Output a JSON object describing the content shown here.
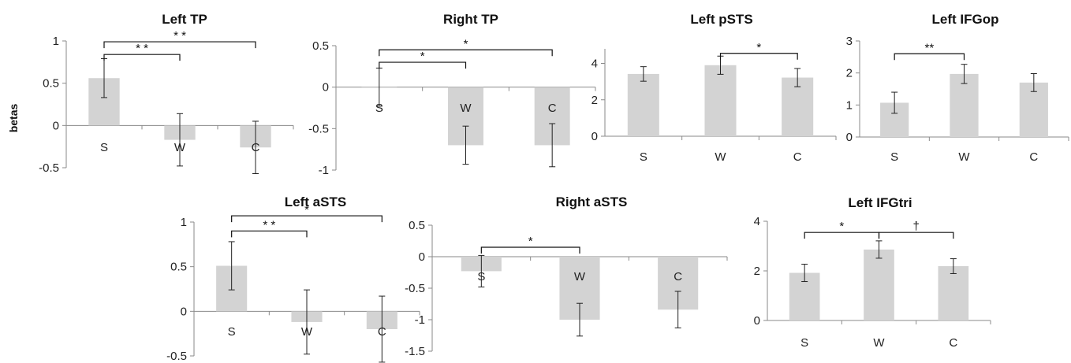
{
  "figure": {
    "ylabel": "betas",
    "bar_color": "#d3d3d3"
  },
  "chart_data": [
    {
      "type": "bar",
      "title": "Left TP",
      "categories": [
        "S",
        "W",
        "C"
      ],
      "values": [
        0.56,
        -0.17,
        -0.26
      ],
      "errors": [
        0.23,
        0.31,
        0.31
      ],
      "ylim": [
        -0.5,
        1
      ],
      "yticks": [
        1,
        0.5,
        0,
        -0.5
      ],
      "ytick_labels": [
        "1",
        "0.5",
        "0",
        "-0.5"
      ],
      "ylabel": "betas",
      "significance": [
        {
          "from": "S",
          "to": "W",
          "label": "* *",
          "y": 0.84
        },
        {
          "from": "S",
          "to": "C",
          "label": "* *",
          "y": 0.99
        }
      ]
    },
    {
      "type": "bar",
      "title": "Right TP",
      "categories": [
        "S",
        "W",
        "C"
      ],
      "values": [
        0.0,
        -0.7,
        -0.7
      ],
      "errors": [
        0.23,
        0.23,
        0.26
      ],
      "ylim": [
        -1,
        0.5
      ],
      "yticks": [
        0.5,
        0,
        -0.5,
        -1
      ],
      "ytick_labels": [
        "0.5",
        "0",
        "-0.5",
        "-1"
      ],
      "significance": [
        {
          "from": "S",
          "to": "W",
          "label": "*",
          "y": 0.3
        },
        {
          "from": "S",
          "to": "C",
          "label": "*",
          "y": 0.45
        }
      ]
    },
    {
      "type": "bar",
      "title": "Left pSTS",
      "categories": [
        "S",
        "W",
        "C"
      ],
      "values": [
        3.42,
        3.9,
        3.22
      ],
      "errors": [
        0.4,
        0.5,
        0.5
      ],
      "ylim": [
        0,
        4.8
      ],
      "yticks": [
        4,
        2,
        0
      ],
      "ytick_labels": [
        "4",
        "2",
        "0"
      ],
      "significance": [
        {
          "from": "W",
          "to": "C",
          "label": "*",
          "y": 4.55
        }
      ]
    },
    {
      "type": "bar",
      "title": "Left IFGop",
      "categories": [
        "S",
        "W",
        "C"
      ],
      "values": [
        1.07,
        1.97,
        1.7
      ],
      "errors": [
        0.33,
        0.3,
        0.28
      ],
      "ylim": [
        0,
        3
      ],
      "yticks": [
        3,
        2,
        1,
        0
      ],
      "ytick_labels": [
        "3",
        "2",
        "1",
        "0"
      ],
      "significance": [
        {
          "from": "S",
          "to": "W",
          "label": "**",
          "y": 2.6
        }
      ]
    },
    {
      "type": "bar",
      "title": "Left aSTS",
      "categories": [
        "S",
        "W",
        "C"
      ],
      "values": [
        0.51,
        -0.12,
        -0.2
      ],
      "errors": [
        0.27,
        0.36,
        0.37
      ],
      "ylim": [
        -0.5,
        1
      ],
      "yticks": [
        1,
        0.5,
        0,
        -0.5
      ],
      "ytick_labels": [
        "1",
        "0.5",
        "0",
        "-0.5"
      ],
      "significance": [
        {
          "from": "S",
          "to": "W",
          "label": "* *",
          "y": 0.9
        },
        {
          "from": "S",
          "to": "C",
          "label": "*",
          "y": 1.07
        }
      ]
    },
    {
      "type": "bar",
      "title": "Right aSTS",
      "categories": [
        "S",
        "W",
        "C"
      ],
      "values": [
        -0.23,
        -1.0,
        -0.84
      ],
      "errors": [
        0.25,
        0.26,
        0.29
      ],
      "ylim": [
        -1.5,
        0.5
      ],
      "yticks": [
        0.5,
        0,
        -0.5,
        -1,
        -1.5
      ],
      "ytick_labels": [
        "0.5",
        "0",
        "-0.5",
        "-1",
        "-1.5"
      ],
      "significance": [
        {
          "from": "S",
          "to": "W",
          "label": "*",
          "y": 0.15
        }
      ]
    },
    {
      "type": "bar",
      "title": "Left IFGtri",
      "categories": [
        "S",
        "W",
        "C"
      ],
      "values": [
        1.92,
        2.86,
        2.19
      ],
      "errors": [
        0.35,
        0.35,
        0.3
      ],
      "ylim": [
        0,
        4
      ],
      "yticks": [
        4,
        2,
        0
      ],
      "ytick_labels": [
        "4",
        "2",
        "0"
      ],
      "significance": [
        {
          "from": "S",
          "to": "W",
          "label": "*",
          "y": 3.55
        },
        {
          "from": "W",
          "to": "C",
          "label": "†",
          "y": 3.55
        }
      ]
    }
  ]
}
